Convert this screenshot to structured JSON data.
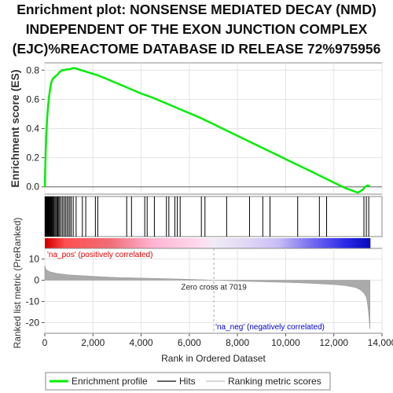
{
  "title_lines": [
    "Enrichment plot: NONSENSE MEDIATED DECAY (NMD)",
    "INDEPENDENT OF THE EXON JUNCTION COMPLEX",
    "(EJC)%REACTOME DATABASE ID RELEASE 72%975956"
  ],
  "chart_data": {
    "type": "line",
    "xlabel": "Rank in Ordered Dataset",
    "xlim": [
      0,
      14000
    ],
    "x_ticks": [
      0,
      2000,
      4000,
      6000,
      8000,
      10000,
      12000,
      14000
    ],
    "x_tick_labels": [
      "0",
      "2,000",
      "4,000",
      "6,000",
      "8,000",
      "10,000",
      "12,000",
      "14,000"
    ],
    "es_panel": {
      "ylabel": "Enrichment score (ES)",
      "ylim": [
        -0.05,
        0.85
      ],
      "y_ticks": [
        0.0,
        0.2,
        0.4,
        0.6,
        0.8
      ],
      "y_tick_labels": [
        "0.0",
        "0.2",
        "0.4",
        "0.6",
        "0.8"
      ],
      "series": [
        {
          "name": "Enrichment profile",
          "color": "#00ee00",
          "x": [
            0,
            30,
            60,
            100,
            140,
            180,
            220,
            260,
            300,
            350,
            400,
            450,
            500,
            550,
            600,
            650,
            700,
            800,
            900,
            1000,
            1100,
            1200,
            1300,
            1500,
            1700,
            2000,
            2200,
            2500,
            3000,
            3500,
            4000,
            4500,
            5000,
            5500,
            6000,
            6500,
            7000,
            7500,
            8000,
            8500,
            9000,
            9500,
            10000,
            10500,
            11000,
            11500,
            12000,
            12500,
            13000,
            13200,
            13300,
            13400,
            13500
          ],
          "y": [
            0.0,
            0.2,
            0.35,
            0.48,
            0.56,
            0.62,
            0.67,
            0.71,
            0.73,
            0.745,
            0.75,
            0.76,
            0.765,
            0.775,
            0.785,
            0.79,
            0.8,
            0.8,
            0.805,
            0.805,
            0.81,
            0.815,
            0.812,
            0.8,
            0.79,
            0.775,
            0.765,
            0.745,
            0.71,
            0.675,
            0.64,
            0.61,
            0.575,
            0.54,
            0.505,
            0.47,
            0.43,
            0.39,
            0.35,
            0.31,
            0.27,
            0.23,
            0.19,
            0.15,
            0.11,
            0.07,
            0.03,
            -0.01,
            -0.04,
            -0.02,
            0.0,
            0.01,
            0.005
          ]
        }
      ]
    },
    "hits": [
      20,
      40,
      60,
      80,
      100,
      120,
      140,
      160,
      180,
      200,
      230,
      260,
      290,
      320,
      350,
      380,
      420,
      460,
      500,
      540,
      580,
      620,
      680,
      740,
      800,
      860,
      920,
      980,
      1040,
      1100,
      1180,
      1300,
      1560,
      1700,
      2100,
      2200,
      3400,
      3600,
      4150,
      4250,
      4550,
      5050,
      5150,
      5400,
      5500,
      5620,
      6500,
      6650,
      7550,
      8500,
      9050,
      9350,
      10500,
      11400,
      11700,
      13250,
      13350,
      13450
    ],
    "rank_metric_panel": {
      "ylabel": "Ranked list metric (PreRanked)",
      "ylim": [
        -25,
        15
      ],
      "y_ticks": [
        -20,
        -10,
        0,
        10
      ],
      "y_tick_labels": [
        "-20",
        "-10",
        "0",
        "10"
      ],
      "profile_x": [
        0,
        50,
        200,
        500,
        1000,
        2000,
        3000,
        4000,
        5000,
        6000,
        7019,
        8000,
        9000,
        10000,
        11000,
        12000,
        12500,
        12900,
        13100,
        13250,
        13350,
        13400,
        13450,
        13500
      ],
      "profile_y": [
        7,
        5,
        4,
        3.2,
        2.5,
        1.8,
        1.3,
        1.0,
        0.7,
        0.4,
        0,
        -0.4,
        -0.7,
        -1.0,
        -1.4,
        -2.0,
        -2.6,
        -3.4,
        -4.5,
        -6,
        -8,
        -11,
        -16,
        -23
      ],
      "zero_cross_label": "Zero cross at 7019",
      "zero_cross_x": 7019,
      "pos_label": "'na_pos' (positively correlated)",
      "neg_label": "'na_neg' (negatively correlated)"
    },
    "legend": {
      "placement": "bottom",
      "items": [
        {
          "label": "Enrichment profile",
          "color": "#00ee00"
        },
        {
          "label": "Hits",
          "color": "#666666"
        },
        {
          "label": "Ranking metric scores",
          "color": "#cccccc"
        }
      ]
    },
    "colors": {
      "pos_label": "#dd0000",
      "neg_label": "#0000cc",
      "heat_red": "#ff0000",
      "heat_blue": "#0000ff"
    }
  }
}
